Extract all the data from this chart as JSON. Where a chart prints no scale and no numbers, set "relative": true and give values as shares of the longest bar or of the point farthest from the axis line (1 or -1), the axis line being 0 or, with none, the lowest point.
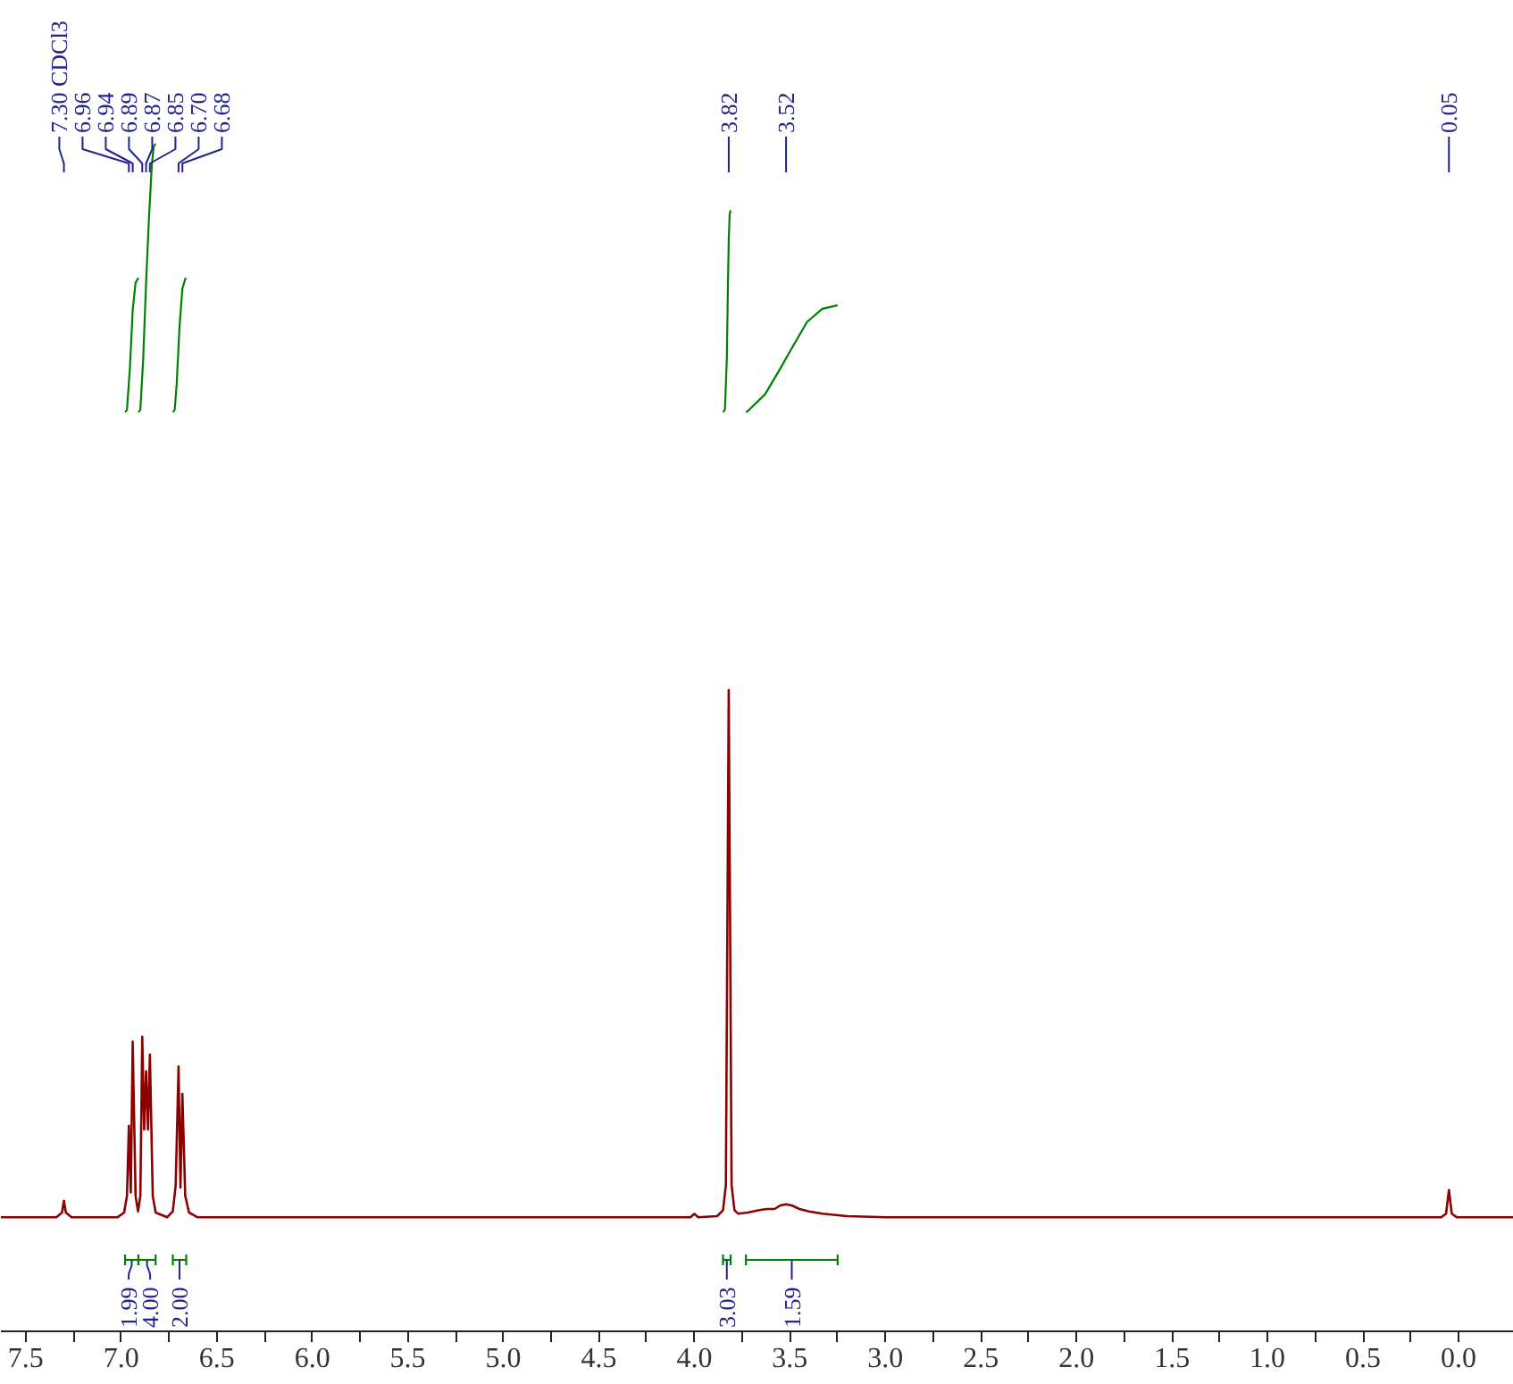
{
  "chart_data": {
    "type": "line",
    "relative": true,
    "xlim": [
      7.63,
      -0.29
    ],
    "xticks": [
      7.5,
      {
        "value": 7.25,
        "label": null
      },
      {
        "value": 7,
        "label": "7.0"
      },
      {
        "value": 6.75,
        "label": null
      },
      6.5,
      {
        "value": 6.25,
        "label": null
      },
      {
        "value": 6,
        "label": "6.0"
      },
      {
        "value": 5.75,
        "label": null
      },
      5.5,
      {
        "value": 5.25,
        "label": null
      },
      {
        "value": 5,
        "label": "5.0"
      },
      {
        "value": 4.75,
        "label": null
      },
      4.5,
      {
        "value": 4.25,
        "label": null
      },
      {
        "value": 4,
        "label": "4.0"
      },
      {
        "value": 3.75,
        "label": null
      },
      3.5,
      {
        "value": 3.25,
        "label": null
      },
      {
        "value": 3,
        "label": "3.0"
      },
      {
        "value": 2.75,
        "label": null
      },
      2.5,
      {
        "value": 2.25,
        "label": null
      },
      {
        "value": 2,
        "label": "2.0"
      },
      {
        "value": 1.75,
        "label": null
      },
      1.5,
      {
        "value": 1.25,
        "label": null
      },
      {
        "value": 1,
        "label": "1.0"
      },
      {
        "value": 0.75,
        "label": null
      },
      0.5,
      {
        "value": 0.25,
        "label": null
      },
      {
        "value": 0,
        "label": "0.0"
      }
    ],
    "annotations": [
      {
        "text": "7.30 CDCl3",
        "x": 7.3
      },
      {
        "text": "6.96",
        "x": 6.96
      },
      {
        "text": "6.94",
        "x": 6.94
      },
      {
        "text": "6.89",
        "x": 6.89
      },
      {
        "text": "6.87",
        "x": 6.87
      },
      {
        "text": "6.85",
        "x": 6.85
      },
      {
        "text": "6.70",
        "x": 6.7
      },
      {
        "text": "6.68",
        "x": 6.68
      },
      {
        "text": "3.82",
        "x": 3.82
      },
      {
        "text": "3.52",
        "x": 3.52
      },
      {
        "text": "0.05",
        "x": 0.05
      },
      {
        "text": "1.99",
        "x": 6.945
      },
      {
        "text": "4.00",
        "x": 6.865
      },
      {
        "text": "2.00",
        "x": 6.695
      },
      {
        "text": "3.03",
        "x": 3.83
      },
      {
        "text": "1.59",
        "x": 3.49
      }
    ],
    "series": [
      {
        "color": "#8b0000",
        "x": [
          7.63,
          7.34,
          7.31,
          7.3,
          7.29,
          7.26,
          7.02,
          6.985,
          6.97,
          6.96,
          6.95,
          6.94,
          6.925,
          6.912,
          6.9,
          6.89,
          6.88,
          6.87,
          6.86,
          6.85,
          6.835,
          6.82,
          6.76,
          6.73,
          6.715,
          6.7,
          6.69,
          6.68,
          6.665,
          6.645,
          6.6,
          4.02,
          4.0,
          3.98,
          3.88,
          3.85,
          3.835,
          3.82,
          3.805,
          3.79,
          3.77,
          3.72,
          3.66,
          3.62,
          3.58,
          3.55,
          3.52,
          3.49,
          3.45,
          3.4,
          3.33,
          3.2,
          3.0,
          0.09,
          0.065,
          0.05,
          0.035,
          0.01,
          -0.29
        ],
        "values": [
          0.096,
          0.096,
          0.1,
          0.11,
          0.1,
          0.096,
          0.096,
          0.1,
          0.114,
          0.173,
          0.117,
          0.244,
          0.114,
          0.101,
          0.114,
          0.248,
          0.17,
          0.219,
          0.17,
          0.233,
          0.114,
          0.1,
          0.096,
          0.101,
          0.123,
          0.223,
          0.121,
          0.2,
          0.114,
          0.1,
          0.096,
          0.096,
          0.099,
          0.096,
          0.097,
          0.102,
          0.123,
          0.54,
          0.123,
          0.102,
          0.099,
          0.1,
          0.102,
          0.103,
          0.103,
          0.106,
          0.107,
          0.106,
          0.103,
          0.101,
          0.099,
          0.097,
          0.096,
          0.096,
          0.099,
          0.119,
          0.099,
          0.096,
          0.096
        ]
      },
      {
        "color": "#008000",
        "x": [
          6.98,
          6.97,
          6.955,
          6.94,
          6.925,
          6.91
        ],
        "values": [
          0.774,
          0.776,
          0.81,
          0.86,
          0.883,
          0.887
        ]
      },
      {
        "color": "#008000",
        "x": [
          6.91,
          6.9,
          6.885,
          6.87,
          6.855,
          6.84,
          6.83,
          6.82
        ],
        "values": [
          0.774,
          0.776,
          0.819,
          0.883,
          0.937,
          0.982,
          0.998,
          1.0
        ]
      },
      {
        "color": "#008000",
        "x": [
          6.73,
          6.72,
          6.71,
          6.695,
          6.68,
          6.665,
          6.66
        ],
        "values": [
          0.774,
          0.776,
          0.797,
          0.846,
          0.878,
          0.886,
          0.887
        ]
      },
      {
        "color": "#008000",
        "x": [
          3.85,
          3.84,
          3.83,
          3.825,
          3.82,
          3.815,
          3.81
        ],
        "values": [
          0.774,
          0.776,
          0.819,
          0.873,
          0.919,
          0.941,
          0.944
        ]
      },
      {
        "color": "#008000",
        "x": [
          3.73,
          3.72,
          3.63,
          3.56,
          3.5,
          3.41,
          3.33,
          3.25
        ],
        "values": [
          0.774,
          0.775,
          0.789,
          0.808,
          0.825,
          0.85,
          0.861,
          0.864
        ]
      }
    ]
  }
}
